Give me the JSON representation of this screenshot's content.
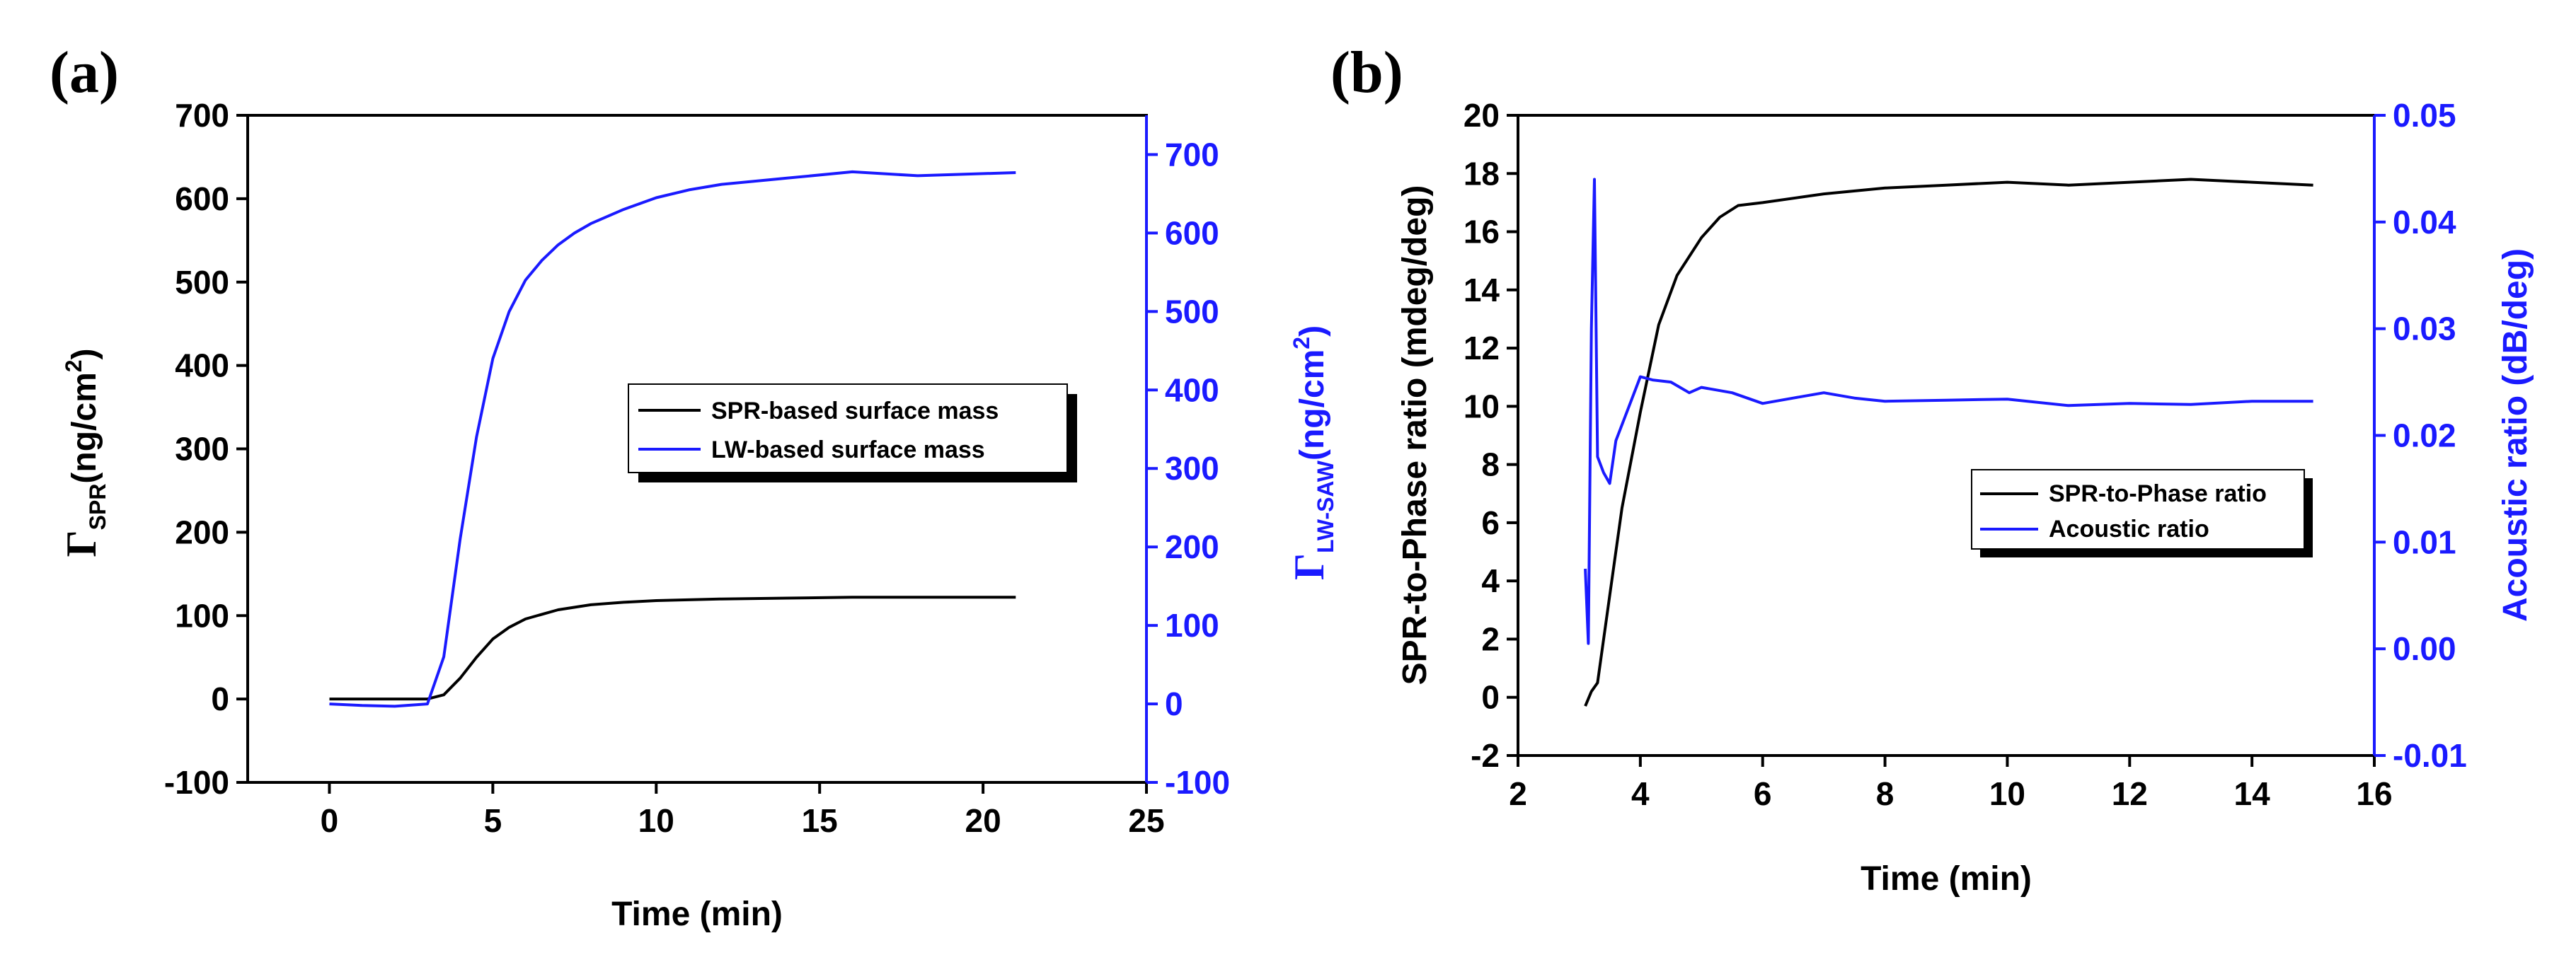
{
  "chart_data": [
    {
      "panel_label": "(a)",
      "type": "line",
      "xlabel": "Time (min)",
      "ylabel_main": "Γ",
      "ylabel_sub": "SPR",
      "ylabel_unit": "(ng/cm",
      "ylabel_sup": "2",
      "ylabel_close": ")",
      "y2label_main": "Γ",
      "y2label_sub": "LW-SAW",
      "y2label_unit": "(ng/cm",
      "y2label_sup": "2",
      "y2label_close": ")",
      "xlim": [
        -2.5,
        25
      ],
      "ylim": [
        -100,
        700
      ],
      "y2lim": [
        -100,
        750
      ],
      "xticks": [
        0,
        5,
        10,
        15,
        20,
        25
      ],
      "yticks": [
        -100,
        0,
        100,
        200,
        300,
        400,
        500,
        600,
        700
      ],
      "y2ticks": [
        -100,
        0,
        100,
        200,
        300,
        400,
        500,
        600,
        700
      ],
      "legend_position": "center-right",
      "colors": {
        "spr": "#000000",
        "lw": "#1a1aff"
      },
      "series": [
        {
          "name": "SPR-based surface mass",
          "axis": "left",
          "x": [
            0,
            1,
            2,
            3,
            3.5,
            4,
            4.5,
            5,
            5.5,
            6,
            7,
            8,
            9,
            10,
            12,
            14,
            16,
            18,
            21
          ],
          "y": [
            0,
            0,
            0,
            0,
            5,
            25,
            50,
            72,
            86,
            96,
            107,
            113,
            116,
            118,
            120,
            121,
            122,
            122,
            122
          ]
        },
        {
          "name": "LW-based surface mass",
          "axis": "right",
          "x": [
            0,
            1,
            2,
            3,
            3.5,
            4,
            4.5,
            5,
            5.5,
            6,
            6.5,
            7,
            7.5,
            8,
            9,
            10,
            11,
            12,
            14,
            16,
            18,
            21
          ],
          "y": [
            0,
            -2,
            -3,
            0,
            60,
            210,
            340,
            440,
            500,
            540,
            565,
            585,
            600,
            612,
            630,
            645,
            655,
            662,
            670,
            678,
            673,
            677
          ]
        }
      ]
    },
    {
      "panel_label": "(b)",
      "type": "line",
      "xlabel": "Time (min)",
      "ylabel": "SPR-to-Phase ratio (mdeg/deg)",
      "y2label": "Acoustic ratio (dB/deg)",
      "xlim": [
        2,
        16
      ],
      "ylim": [
        -2,
        20
      ],
      "y2lim": [
        -0.01,
        0.05
      ],
      "xticks": [
        2,
        4,
        6,
        8,
        10,
        12,
        14,
        16
      ],
      "yticks": [
        -2,
        0,
        2,
        4,
        6,
        8,
        10,
        12,
        14,
        16,
        18,
        20
      ],
      "y2ticks": [
        -0.01,
        0.0,
        0.01,
        0.02,
        0.03,
        0.04,
        0.05
      ],
      "y2tick_labels": [
        "-0.01",
        "0.00",
        "0.01",
        "0.02",
        "0.03",
        "0.04",
        "0.05"
      ],
      "legend_position": "center-right",
      "colors": {
        "spr": "#000000",
        "acoustic": "#1a1aff"
      },
      "series": [
        {
          "name": "SPR-to-Phase ratio",
          "axis": "left",
          "x": [
            3.1,
            3.2,
            3.3,
            3.5,
            3.7,
            4,
            4.3,
            4.6,
            5,
            5.3,
            5.6,
            6,
            7,
            8,
            9,
            10,
            11,
            12,
            13,
            14,
            15
          ],
          "y": [
            -0.3,
            0.2,
            0.5,
            3.5,
            6.5,
            9.8,
            12.8,
            14.5,
            15.8,
            16.5,
            16.9,
            17.0,
            17.3,
            17.5,
            17.6,
            17.7,
            17.6,
            17.7,
            17.8,
            17.7,
            17.6
          ]
        },
        {
          "name": "Acoustic ratio",
          "axis": "right",
          "x": [
            3.1,
            3.15,
            3.2,
            3.25,
            3.3,
            3.4,
            3.5,
            3.6,
            3.8,
            4.0,
            4.2,
            4.5,
            4.8,
            5,
            5.5,
            6,
            6.5,
            7,
            7.5,
            8,
            9,
            10,
            11,
            12,
            13,
            14,
            15
          ],
          "y": [
            0.0075,
            0.0005,
            0.03,
            0.044,
            0.018,
            0.0165,
            0.0155,
            0.0195,
            0.0225,
            0.0255,
            0.0252,
            0.025,
            0.024,
            0.0245,
            0.024,
            0.023,
            0.0235,
            0.024,
            0.0235,
            0.0232,
            0.0233,
            0.0234,
            0.0228,
            0.023,
            0.0229,
            0.0232,
            0.0232
          ]
        }
      ]
    }
  ]
}
